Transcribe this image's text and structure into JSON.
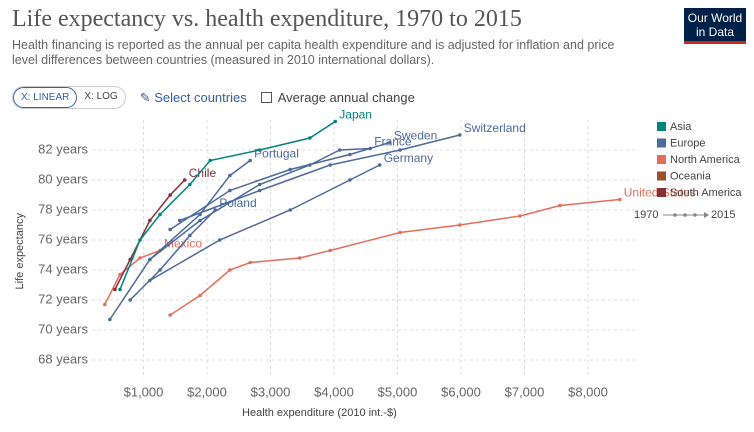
{
  "header": {
    "title": "Life expectancy vs. health expenditure, 1970 to 2015",
    "subtitle": "Health financing is reported as the annual per capita health expenditure and is adjusted for inflation and price level differences between countries (measured in 2010 international dollars).",
    "logo": [
      "Our World",
      "in Data"
    ]
  },
  "controls": {
    "linear": "X: LINEAR",
    "log": "X: LOG",
    "select": "Select countries",
    "average": "Average annual change"
  },
  "chart_data": {
    "type": "line",
    "xlabel": "Health expenditure (2010 int.-$)",
    "ylabel": "Life expectancy",
    "xlim": [
      0,
      8800
    ],
    "ylim": [
      66.5,
      84
    ],
    "xticks": [
      {
        "value": 1000,
        "label": "$1,000"
      },
      {
        "value": 2000,
        "label": "$2,000"
      },
      {
        "value": 3000,
        "label": "$3,000"
      },
      {
        "value": 4000,
        "label": "$4,000"
      },
      {
        "value": 5000,
        "label": "$5,000"
      },
      {
        "value": 6000,
        "label": "$6,000"
      },
      {
        "value": 7000,
        "label": "$7,000"
      },
      {
        "value": 8000,
        "label": "$8,000"
      }
    ],
    "yticks": [
      {
        "value": 68,
        "label": "68 years"
      },
      {
        "value": 70,
        "label": "70 years"
      },
      {
        "value": 72,
        "label": "72 years"
      },
      {
        "value": 74,
        "label": "74 years"
      },
      {
        "value": 76,
        "label": "76 years"
      },
      {
        "value": 78,
        "label": "78 years"
      },
      {
        "value": 80,
        "label": "80 years"
      },
      {
        "value": 82,
        "label": "82 years"
      }
    ],
    "grid": true,
    "legend": [
      {
        "name": "Asia",
        "color": "#00847e"
      },
      {
        "name": "Europe",
        "color": "#4c6a9c"
      },
      {
        "name": "North America",
        "color": "#e56e5a"
      },
      {
        "name": "Oceania",
        "color": "#9a5129"
      },
      {
        "name": "South America",
        "color": "#883039"
      }
    ],
    "time_legend": [
      "1970",
      "2015"
    ],
    "series": [
      {
        "name": "United States",
        "color": "#e56e5a",
        "x": [
          1420,
          1890,
          2360,
          2680,
          3460,
          3940,
          5040,
          5980,
          6930,
          7560,
          8500
        ],
        "values": [
          71.0,
          72.3,
          74.0,
          74.5,
          74.8,
          75.3,
          76.5,
          77.0,
          77.6,
          78.3,
          78.7
        ]
      },
      {
        "name": "Mexico",
        "color": "#e56e5a",
        "x": [
          390,
          630,
          945,
          1260
        ],
        "values": [
          71.7,
          73.7,
          74.8,
          75.3
        ]
      },
      {
        "name": "Chile",
        "color": "#883039",
        "x": [
          550,
          790,
          1100,
          1420,
          1650
        ],
        "values": [
          72.7,
          74.7,
          77.3,
          79.0,
          80.0
        ]
      },
      {
        "name": "Japan",
        "color": "#00847e",
        "x": [
          630,
          945,
          1260,
          1730,
          2050,
          2830,
          3620,
          4020
        ],
        "values": [
          72.7,
          76.0,
          77.7,
          79.7,
          81.3,
          82.0,
          82.8,
          83.9
        ]
      },
      {
        "name": "Portugal",
        "color": "#4c6a9c",
        "x": [
          470,
          1100,
          1890,
          2360,
          2680
        ],
        "values": [
          70.7,
          74.7,
          77.7,
          80.3,
          81.3
        ]
      },
      {
        "name": "Poland",
        "color": "#4c6a9c",
        "x": [
          790,
          1260,
          1730,
          2130
        ],
        "values": [
          72.0,
          74.0,
          76.3,
          78.0
        ]
      },
      {
        "name": "France",
        "color": "#4c6a9c",
        "x": [
          1100,
          1890,
          2830,
          3620,
          4090,
          4570
        ],
        "values": [
          74.7,
          77.3,
          79.7,
          81.0,
          82.0,
          82.1
        ]
      },
      {
        "name": "Germany",
        "color": "#4c6a9c",
        "x": [
          1100,
          2200,
          3310,
          4250,
          4720
        ],
        "values": [
          73.3,
          76.0,
          78.0,
          80.0,
          81.0
        ]
      },
      {
        "name": "Sweden",
        "color": "#4c6a9c",
        "x": [
          1420,
          2360,
          3310,
          4250,
          4880
        ],
        "values": [
          76.7,
          79.3,
          80.7,
          81.7,
          82.5
        ]
      },
      {
        "name": "Switzerland",
        "color": "#4c6a9c",
        "x": [
          1570,
          2830,
          3940,
          5040,
          5980
        ],
        "values": [
          77.3,
          79.3,
          81.0,
          82.0,
          83.0
        ]
      }
    ]
  }
}
